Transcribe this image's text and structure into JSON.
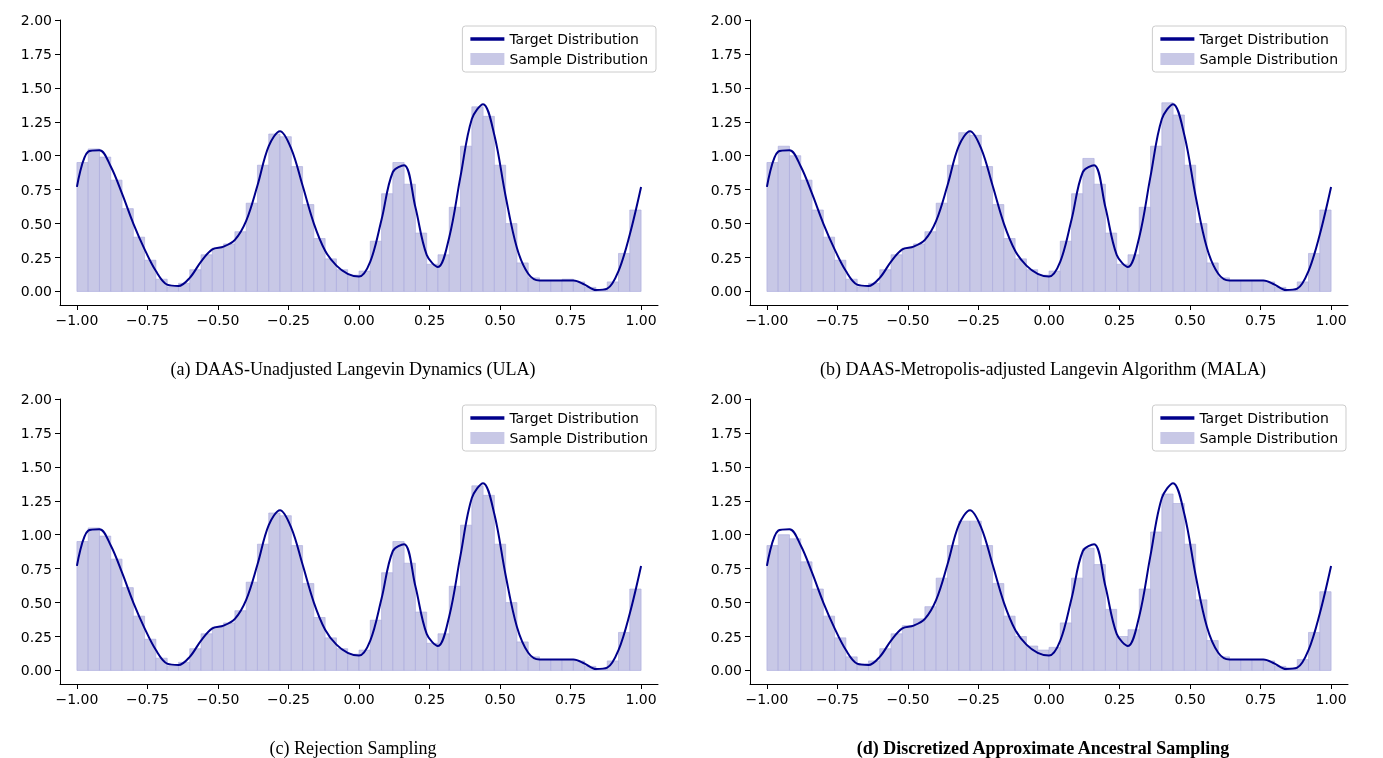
{
  "chart_data": [
    {
      "type": "histogram",
      "title": "(a) DAAS-Unadjusted Langevin Dynamics (ULA)",
      "legend": "top right",
      "grid": false,
      "xlim": [
        -1.06,
        1.06
      ],
      "ylim": [
        -0.1,
        2.0
      ],
      "xticks": [
        {
          "value": -1,
          "label": "−1.00"
        },
        {
          "value": -0.75,
          "label": "−0.75"
        },
        {
          "value": -0.5,
          "label": "−0.50"
        },
        {
          "value": -0.25,
          "label": "−0.25"
        },
        {
          "value": 0,
          "label": "0.00"
        },
        {
          "value": 0.25,
          "label": "0.25"
        },
        {
          "value": 0.5,
          "label": "0.50"
        },
        {
          "value": 0.75,
          "label": "0.75"
        },
        {
          "value": 1,
          "label": "1.00"
        }
      ],
      "yticks": [
        {
          "value": 0,
          "label": "0.00"
        },
        {
          "value": 0.25,
          "label": "0.25"
        },
        {
          "value": 0.5,
          "label": "0.50"
        },
        {
          "value": 0.75,
          "label": "0.75"
        },
        {
          "value": 1,
          "label": "1.00"
        },
        {
          "value": 1.25,
          "label": "1.25"
        },
        {
          "value": 1.5,
          "label": "1.50"
        },
        {
          "value": 1.75,
          "label": "1.75"
        },
        {
          "value": 2,
          "label": "2.00"
        }
      ],
      "series": [
        {
          "name": "Sample Distribution",
          "color": "#c8c8e6",
          "bins": [
            -1.0,
            -0.96,
            -0.92,
            -0.88,
            -0.84,
            -0.8,
            -0.76,
            -0.72,
            -0.68,
            -0.64,
            -0.6,
            -0.56,
            -0.52,
            -0.48,
            -0.44,
            -0.4,
            -0.36,
            -0.32,
            -0.28,
            -0.24,
            -0.2,
            -0.16,
            -0.12,
            -0.08,
            -0.04,
            0.0,
            0.04,
            0.08,
            0.12,
            0.16,
            0.2,
            0.24,
            0.28,
            0.32,
            0.36,
            0.4,
            0.44,
            0.48,
            0.52,
            0.56,
            0.6,
            0.64,
            0.68,
            0.72,
            0.76,
            0.8,
            0.84,
            0.88,
            0.92,
            0.96,
            1.0
          ],
          "values": [
            0.95,
            1.05,
            0.99,
            0.82,
            0.61,
            0.4,
            0.23,
            0.09,
            0.03,
            0.06,
            0.16,
            0.27,
            0.32,
            0.35,
            0.44,
            0.65,
            0.93,
            1.16,
            1.14,
            0.92,
            0.64,
            0.39,
            0.24,
            0.16,
            0.12,
            0.15,
            0.37,
            0.72,
            0.95,
            0.79,
            0.43,
            0.2,
            0.27,
            0.62,
            1.07,
            1.36,
            1.29,
            0.93,
            0.5,
            0.21,
            0.1,
            0.08,
            0.08,
            0.09,
            0.07,
            0.03,
            0.01,
            0.07,
            0.28,
            0.6
          ]
        },
        {
          "type": "line",
          "name": "Target Distribution",
          "color": "#00008b",
          "x": [
            -1.0,
            -0.96,
            -0.92,
            -0.88,
            -0.84,
            -0.8,
            -0.76,
            -0.72,
            -0.68,
            -0.64,
            -0.6,
            -0.56,
            -0.52,
            -0.48,
            -0.44,
            -0.4,
            -0.36,
            -0.32,
            -0.28,
            -0.24,
            -0.2,
            -0.16,
            -0.12,
            -0.08,
            -0.04,
            0.0,
            0.04,
            0.08,
            0.12,
            0.16,
            0.2,
            0.24,
            0.28,
            0.32,
            0.36,
            0.4,
            0.44,
            0.48,
            0.52,
            0.56,
            0.6,
            0.64,
            0.68,
            0.72,
            0.76,
            0.8,
            0.84,
            0.88,
            0.92,
            0.96,
            1.0
          ],
          "values": [
            0.77,
            1.03,
            1.04,
            0.92,
            0.72,
            0.5,
            0.31,
            0.15,
            0.05,
            0.04,
            0.1,
            0.22,
            0.31,
            0.33,
            0.38,
            0.52,
            0.78,
            1.07,
            1.18,
            1.05,
            0.78,
            0.5,
            0.3,
            0.19,
            0.13,
            0.11,
            0.22,
            0.53,
            0.88,
            0.93,
            0.62,
            0.27,
            0.18,
            0.4,
            0.85,
            1.27,
            1.38,
            1.15,
            0.7,
            0.32,
            0.13,
            0.08,
            0.08,
            0.08,
            0.08,
            0.05,
            0.01,
            0.02,
            0.15,
            0.42,
            0.77
          ]
        }
      ]
    },
    {
      "type": "histogram",
      "title": "(b) DAAS-Metropolis-adjusted Langevin Algorithm (MALA)",
      "legend": "top right",
      "grid": false,
      "xlim": [
        -1.06,
        1.06
      ],
      "ylim": [
        -0.1,
        2.0
      ],
      "xticks": [
        {
          "value": -1,
          "label": "−1.00"
        },
        {
          "value": -0.75,
          "label": "−0.75"
        },
        {
          "value": -0.5,
          "label": "−0.50"
        },
        {
          "value": -0.25,
          "label": "−0.25"
        },
        {
          "value": 0,
          "label": "0.00"
        },
        {
          "value": 0.25,
          "label": "0.25"
        },
        {
          "value": 0.5,
          "label": "0.50"
        },
        {
          "value": 0.75,
          "label": "0.75"
        },
        {
          "value": 1,
          "label": "1.00"
        }
      ],
      "yticks": [
        {
          "value": 0,
          "label": "0.00"
        },
        {
          "value": 0.25,
          "label": "0.25"
        },
        {
          "value": 0.5,
          "label": "0.50"
        },
        {
          "value": 0.75,
          "label": "0.75"
        },
        {
          "value": 1,
          "label": "1.00"
        },
        {
          "value": 1.25,
          "label": "1.25"
        },
        {
          "value": 1.5,
          "label": "1.50"
        },
        {
          "value": 1.75,
          "label": "1.75"
        },
        {
          "value": 2,
          "label": "2.00"
        }
      ],
      "series": [
        {
          "name": "Sample Distribution",
          "color": "#c8c8e6",
          "bins": [
            -1.0,
            -0.96,
            -0.92,
            -0.88,
            -0.84,
            -0.8,
            -0.76,
            -0.72,
            -0.68,
            -0.64,
            -0.6,
            -0.56,
            -0.52,
            -0.48,
            -0.44,
            -0.4,
            -0.36,
            -0.32,
            -0.28,
            -0.24,
            -0.2,
            -0.16,
            -0.12,
            -0.08,
            -0.04,
            0.0,
            0.04,
            0.08,
            0.12,
            0.16,
            0.2,
            0.24,
            0.28,
            0.32,
            0.36,
            0.4,
            0.44,
            0.48,
            0.52,
            0.56,
            0.6,
            0.64,
            0.68,
            0.72,
            0.76,
            0.8,
            0.84,
            0.88,
            0.92,
            0.96,
            1.0
          ],
          "values": [
            0.95,
            1.07,
            1.0,
            0.82,
            0.6,
            0.4,
            0.23,
            0.09,
            0.03,
            0.06,
            0.16,
            0.27,
            0.32,
            0.35,
            0.44,
            0.65,
            0.93,
            1.17,
            1.15,
            0.92,
            0.64,
            0.39,
            0.24,
            0.16,
            0.12,
            0.15,
            0.37,
            0.72,
            0.98,
            0.79,
            0.43,
            0.2,
            0.27,
            0.62,
            1.07,
            1.39,
            1.3,
            0.93,
            0.5,
            0.21,
            0.1,
            0.08,
            0.08,
            0.08,
            0.07,
            0.03,
            0.01,
            0.07,
            0.28,
            0.6
          ]
        },
        {
          "type": "line",
          "name": "Target Distribution",
          "color": "#00008b",
          "x": [
            -1.0,
            -0.96,
            -0.92,
            -0.88,
            -0.84,
            -0.8,
            -0.76,
            -0.72,
            -0.68,
            -0.64,
            -0.6,
            -0.56,
            -0.52,
            -0.48,
            -0.44,
            -0.4,
            -0.36,
            -0.32,
            -0.28,
            -0.24,
            -0.2,
            -0.16,
            -0.12,
            -0.08,
            -0.04,
            0.0,
            0.04,
            0.08,
            0.12,
            0.16,
            0.2,
            0.24,
            0.28,
            0.32,
            0.36,
            0.4,
            0.44,
            0.48,
            0.52,
            0.56,
            0.6,
            0.64,
            0.68,
            0.72,
            0.76,
            0.8,
            0.84,
            0.88,
            0.92,
            0.96,
            1.0
          ],
          "values": [
            0.77,
            1.03,
            1.04,
            0.92,
            0.72,
            0.5,
            0.31,
            0.15,
            0.05,
            0.04,
            0.1,
            0.22,
            0.31,
            0.33,
            0.38,
            0.52,
            0.78,
            1.07,
            1.18,
            1.05,
            0.78,
            0.5,
            0.3,
            0.19,
            0.13,
            0.11,
            0.22,
            0.53,
            0.88,
            0.93,
            0.62,
            0.27,
            0.18,
            0.4,
            0.85,
            1.27,
            1.38,
            1.15,
            0.7,
            0.32,
            0.13,
            0.08,
            0.08,
            0.08,
            0.08,
            0.05,
            0.01,
            0.02,
            0.15,
            0.42,
            0.77
          ]
        }
      ]
    },
    {
      "type": "histogram",
      "title": "(c) Rejection Sampling",
      "legend": "top right",
      "grid": false,
      "xlim": [
        -1.06,
        1.06
      ],
      "ylim": [
        -0.1,
        2.0
      ],
      "xticks": [
        {
          "value": -1,
          "label": "−1.00"
        },
        {
          "value": -0.75,
          "label": "−0.75"
        },
        {
          "value": -0.5,
          "label": "−0.50"
        },
        {
          "value": -0.25,
          "label": "−0.25"
        },
        {
          "value": 0,
          "label": "0.00"
        },
        {
          "value": 0.25,
          "label": "0.25"
        },
        {
          "value": 0.5,
          "label": "0.50"
        },
        {
          "value": 0.75,
          "label": "0.75"
        },
        {
          "value": 1,
          "label": "1.00"
        }
      ],
      "yticks": [
        {
          "value": 0,
          "label": "0.00"
        },
        {
          "value": 0.25,
          "label": "0.25"
        },
        {
          "value": 0.5,
          "label": "0.50"
        },
        {
          "value": 0.75,
          "label": "0.75"
        },
        {
          "value": 1,
          "label": "1.00"
        },
        {
          "value": 1.25,
          "label": "1.25"
        },
        {
          "value": 1.5,
          "label": "1.50"
        },
        {
          "value": 1.75,
          "label": "1.75"
        },
        {
          "value": 2,
          "label": "2.00"
        }
      ],
      "series": [
        {
          "name": "Sample Distribution",
          "color": "#c8c8e6",
          "bins": [
            -1.0,
            -0.96,
            -0.92,
            -0.88,
            -0.84,
            -0.8,
            -0.76,
            -0.72,
            -0.68,
            -0.64,
            -0.6,
            -0.56,
            -0.52,
            -0.48,
            -0.44,
            -0.4,
            -0.36,
            -0.32,
            -0.28,
            -0.24,
            -0.2,
            -0.16,
            -0.12,
            -0.08,
            -0.04,
            0.0,
            0.04,
            0.08,
            0.12,
            0.16,
            0.2,
            0.24,
            0.28,
            0.32,
            0.36,
            0.4,
            0.44,
            0.48,
            0.52,
            0.56,
            0.6,
            0.64,
            0.68,
            0.72,
            0.76,
            0.8,
            0.84,
            0.88,
            0.92,
            0.96,
            1.0
          ],
          "values": [
            0.95,
            1.05,
            0.99,
            0.82,
            0.61,
            0.4,
            0.23,
            0.09,
            0.03,
            0.06,
            0.16,
            0.27,
            0.32,
            0.35,
            0.44,
            0.65,
            0.93,
            1.16,
            1.14,
            0.92,
            0.64,
            0.39,
            0.24,
            0.16,
            0.12,
            0.15,
            0.37,
            0.72,
            0.95,
            0.79,
            0.43,
            0.2,
            0.27,
            0.62,
            1.07,
            1.36,
            1.29,
            0.93,
            0.5,
            0.21,
            0.1,
            0.08,
            0.08,
            0.08,
            0.07,
            0.03,
            0.01,
            0.07,
            0.28,
            0.6
          ]
        },
        {
          "type": "line",
          "name": "Target Distribution",
          "color": "#00008b",
          "x": [
            -1.0,
            -0.96,
            -0.92,
            -0.88,
            -0.84,
            -0.8,
            -0.76,
            -0.72,
            -0.68,
            -0.64,
            -0.6,
            -0.56,
            -0.52,
            -0.48,
            -0.44,
            -0.4,
            -0.36,
            -0.32,
            -0.28,
            -0.24,
            -0.2,
            -0.16,
            -0.12,
            -0.08,
            -0.04,
            0.0,
            0.04,
            0.08,
            0.12,
            0.16,
            0.2,
            0.24,
            0.28,
            0.32,
            0.36,
            0.4,
            0.44,
            0.48,
            0.52,
            0.56,
            0.6,
            0.64,
            0.68,
            0.72,
            0.76,
            0.8,
            0.84,
            0.88,
            0.92,
            0.96,
            1.0
          ],
          "values": [
            0.77,
            1.03,
            1.04,
            0.92,
            0.72,
            0.5,
            0.31,
            0.15,
            0.05,
            0.04,
            0.1,
            0.22,
            0.31,
            0.33,
            0.38,
            0.52,
            0.78,
            1.07,
            1.18,
            1.05,
            0.78,
            0.5,
            0.3,
            0.19,
            0.13,
            0.11,
            0.22,
            0.53,
            0.88,
            0.93,
            0.62,
            0.27,
            0.18,
            0.4,
            0.85,
            1.27,
            1.38,
            1.15,
            0.7,
            0.32,
            0.13,
            0.08,
            0.08,
            0.08,
            0.08,
            0.05,
            0.01,
            0.02,
            0.15,
            0.42,
            0.77
          ]
        }
      ]
    },
    {
      "type": "histogram",
      "title": "(d) Discretized Approximate Ancestral Sampling",
      "legend": "top right",
      "grid": false,
      "xlim": [
        -1.06,
        1.06
      ],
      "ylim": [
        -0.1,
        2.0
      ],
      "xticks": [
        {
          "value": -1,
          "label": "−1.00"
        },
        {
          "value": -0.75,
          "label": "−0.75"
        },
        {
          "value": -0.5,
          "label": "−0.50"
        },
        {
          "value": -0.25,
          "label": "−0.25"
        },
        {
          "value": 0,
          "label": "0.00"
        },
        {
          "value": 0.25,
          "label": "0.25"
        },
        {
          "value": 0.5,
          "label": "0.50"
        },
        {
          "value": 0.75,
          "label": "0.75"
        },
        {
          "value": 1,
          "label": "1.00"
        }
      ],
      "yticks": [
        {
          "value": 0,
          "label": "0.00"
        },
        {
          "value": 0.25,
          "label": "0.25"
        },
        {
          "value": 0.5,
          "label": "0.50"
        },
        {
          "value": 0.75,
          "label": "0.75"
        },
        {
          "value": 1,
          "label": "1.00"
        },
        {
          "value": 1.25,
          "label": "1.25"
        },
        {
          "value": 1.5,
          "label": "1.50"
        },
        {
          "value": 1.75,
          "label": "1.75"
        },
        {
          "value": 2,
          "label": "2.00"
        }
      ],
      "series": [
        {
          "name": "Sample Distribution",
          "color": "#c8c8e6",
          "bins": [
            -1.0,
            -0.96,
            -0.92,
            -0.88,
            -0.84,
            -0.8,
            -0.76,
            -0.72,
            -0.68,
            -0.64,
            -0.6,
            -0.56,
            -0.52,
            -0.48,
            -0.44,
            -0.4,
            -0.36,
            -0.32,
            -0.28,
            -0.24,
            -0.2,
            -0.16,
            -0.12,
            -0.08,
            -0.04,
            0.0,
            0.04,
            0.08,
            0.12,
            0.16,
            0.2,
            0.24,
            0.28,
            0.32,
            0.36,
            0.4,
            0.44,
            0.48,
            0.52,
            0.56,
            0.6,
            0.64,
            0.68,
            0.72,
            0.76,
            0.8,
            0.84,
            0.88,
            0.92,
            0.96,
            1.0
          ],
          "values": [
            0.92,
            1.0,
            0.97,
            0.8,
            0.6,
            0.4,
            0.24,
            0.1,
            0.05,
            0.07,
            0.16,
            0.27,
            0.33,
            0.38,
            0.47,
            0.68,
            0.92,
            1.1,
            1.1,
            0.92,
            0.64,
            0.4,
            0.25,
            0.18,
            0.15,
            0.17,
            0.35,
            0.68,
            0.9,
            0.78,
            0.45,
            0.25,
            0.3,
            0.6,
            1.02,
            1.3,
            1.23,
            0.93,
            0.52,
            0.22,
            0.1,
            0.08,
            0.08,
            0.08,
            0.07,
            0.03,
            0.02,
            0.08,
            0.28,
            0.58
          ]
        },
        {
          "type": "line",
          "name": "Target Distribution",
          "color": "#00008b",
          "x": [
            -1.0,
            -0.96,
            -0.92,
            -0.88,
            -0.84,
            -0.8,
            -0.76,
            -0.72,
            -0.68,
            -0.64,
            -0.6,
            -0.56,
            -0.52,
            -0.48,
            -0.44,
            -0.4,
            -0.36,
            -0.32,
            -0.28,
            -0.24,
            -0.2,
            -0.16,
            -0.12,
            -0.08,
            -0.04,
            0.0,
            0.04,
            0.08,
            0.12,
            0.16,
            0.2,
            0.24,
            0.28,
            0.32,
            0.36,
            0.4,
            0.44,
            0.48,
            0.52,
            0.56,
            0.6,
            0.64,
            0.68,
            0.72,
            0.76,
            0.8,
            0.84,
            0.88,
            0.92,
            0.96,
            1.0
          ],
          "values": [
            0.77,
            1.03,
            1.04,
            0.92,
            0.72,
            0.5,
            0.31,
            0.15,
            0.05,
            0.04,
            0.1,
            0.22,
            0.31,
            0.33,
            0.38,
            0.52,
            0.78,
            1.07,
            1.18,
            1.05,
            0.78,
            0.5,
            0.3,
            0.19,
            0.13,
            0.11,
            0.22,
            0.53,
            0.88,
            0.93,
            0.62,
            0.27,
            0.18,
            0.4,
            0.85,
            1.27,
            1.38,
            1.15,
            0.7,
            0.32,
            0.13,
            0.08,
            0.08,
            0.08,
            0.08,
            0.05,
            0.01,
            0.02,
            0.15,
            0.42,
            0.77
          ]
        }
      ]
    }
  ]
}
